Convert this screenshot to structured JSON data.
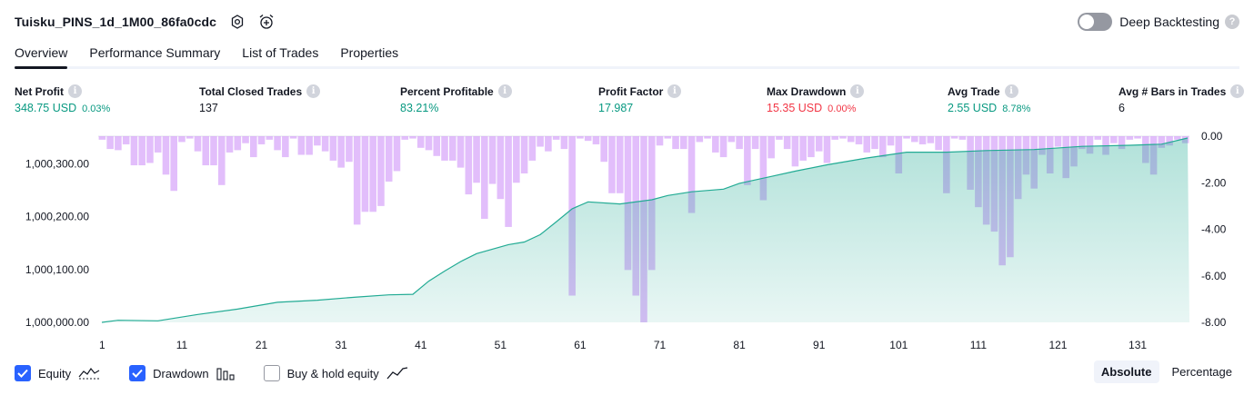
{
  "header": {
    "title": "Tuisku_PINS_1d_1M00_86fa0cdc"
  },
  "deep_backtesting": {
    "label": "Deep Backtesting",
    "enabled": false,
    "help": "?"
  },
  "tabs": [
    {
      "label": "Overview",
      "active": true
    },
    {
      "label": "Performance Summary",
      "active": false
    },
    {
      "label": "List of Trades",
      "active": false
    },
    {
      "label": "Properties",
      "active": false
    }
  ],
  "info_glyph": "i",
  "metrics": {
    "net_profit": {
      "label": "Net Profit",
      "value": "348.75 USD",
      "pct": "0.03%"
    },
    "total_closed_trades": {
      "label": "Total Closed Trades",
      "value": "137"
    },
    "percent_profitable": {
      "label": "Percent Profitable",
      "value": "83.21%"
    },
    "profit_factor": {
      "label": "Profit Factor",
      "value": "17.987"
    },
    "max_drawdown": {
      "label": "Max Drawdown",
      "value": "15.35 USD",
      "pct": "0.00%"
    },
    "avg_trade": {
      "label": "Avg Trade",
      "value": "2.55 USD",
      "pct": "8.78%"
    },
    "avg_bars": {
      "label": "Avg # Bars in Trades",
      "value": "6"
    }
  },
  "colors": {
    "profit": "#089981",
    "loss": "#f23645",
    "equity_line": "#22ab94",
    "drawdown_bar": "#ce93f8",
    "accent": "#2962ff"
  },
  "chart_data": {
    "type": "area",
    "series": [
      {
        "name": "Equity",
        "axis": "left",
        "ylim": [
          1000000,
          1000348.75
        ],
        "x": [
          1,
          3,
          8,
          13,
          18,
          23,
          28,
          33,
          37,
          40,
          42,
          44,
          46,
          48,
          52,
          54,
          56,
          58,
          60,
          62,
          66,
          70,
          72,
          75,
          79,
          81,
          85,
          88,
          92,
          97,
          102,
          107,
          112,
          118,
          124,
          130,
          134,
          137
        ],
        "values": [
          1000000,
          1000004,
          1000003,
          1000015,
          1000025,
          1000038,
          1000042,
          1000048,
          1000052,
          1000053,
          1000078,
          1000097,
          1000115,
          1000130,
          1000147,
          1000152,
          1000166,
          1000190,
          1000215,
          1000228,
          1000224,
          1000232,
          1000240,
          1000247,
          1000252,
          1000263,
          1000276,
          1000286,
          1000298,
          1000311,
          1000322,
          1000322,
          1000325,
          1000327,
          1000333,
          1000335,
          1000337,
          1000348.75
        ]
      },
      {
        "name": "Drawdown",
        "axis": "right",
        "ylim": [
          -8.0,
          0.0
        ],
        "values": [
          -0.15,
          -0.55,
          -0.6,
          -0.35,
          -1.25,
          -1.25,
          -1.15,
          -0.7,
          -1.65,
          -2.35,
          -0.25,
          -0.1,
          -0.65,
          -1.25,
          -1.25,
          -2.1,
          -0.7,
          -0.6,
          -0.3,
          -0.9,
          -0.35,
          -0.15,
          -0.6,
          -0.9,
          -0.1,
          -0.8,
          -0.8,
          -0.4,
          -0.65,
          -1.05,
          -1.35,
          -1.1,
          -3.8,
          -3.25,
          -3.25,
          -3.0,
          -1.95,
          -1.5,
          -0.15,
          -0.1,
          -0.5,
          -0.6,
          -0.85,
          -1.05,
          -1.05,
          -1.35,
          -2.5,
          -2.0,
          -3.55,
          -2.05,
          -2.7,
          -3.9,
          -2.0,
          -1.6,
          -1.05,
          -0.45,
          -0.65,
          -0.15,
          -0.55,
          -6.85,
          -0.1,
          -0.2,
          -0.35,
          -1.1,
          -2.45,
          -2.45,
          -5.75,
          -6.85,
          -8.0,
          -5.75,
          -0.4,
          -0.1,
          -0.55,
          -0.55,
          -3.3,
          -0.25,
          -0.1,
          -0.7,
          -0.9,
          -0.25,
          -0.55,
          -2.1,
          -0.55,
          -2.75,
          -0.95,
          -0.15,
          -0.55,
          -1.3,
          -1.05,
          -0.9,
          -0.65,
          -1.15,
          -0.15,
          -0.1,
          -0.25,
          -0.35,
          -0.7,
          -0.55,
          -0.9,
          -0.4,
          -1.6,
          -0.1,
          -0.25,
          -0.35,
          -0.3,
          -0.6,
          -2.45,
          -0.1,
          -0.15,
          -2.3,
          -3.05,
          -3.8,
          -4.1,
          -5.55,
          -5.2,
          -2.7,
          -1.65,
          -2.25,
          -0.8,
          -1.6,
          -0.45,
          -1.8,
          -1.3,
          -0.55,
          -0.75,
          -0.15,
          -0.8,
          -0.3,
          -0.55,
          -0.15,
          -0.1,
          -1.15,
          -1.65,
          -0.5,
          -0.4,
          -0.15,
          -0.3
        ]
      }
    ],
    "x_ticks": [
      "1",
      "11",
      "21",
      "31",
      "41",
      "51",
      "61",
      "71",
      "81",
      "91",
      "101",
      "111",
      "121",
      "131"
    ],
    "y_left_ticks": [
      "1,000,000.00",
      "1,000,100.00",
      "1,000,200.00",
      "1,000,300.00"
    ],
    "y_right_ticks": [
      "0.00",
      "-2.00",
      "-4.00",
      "-6.00",
      "-8.00"
    ],
    "grid": false
  },
  "legend": {
    "equity": {
      "label": "Equity",
      "checked": true
    },
    "drawdown": {
      "label": "Drawdown",
      "checked": true
    },
    "buy_hold": {
      "label": "Buy & hold equity",
      "checked": false
    }
  },
  "scale": {
    "absolute": "Absolute",
    "percentage": "Percentage",
    "active": "absolute"
  }
}
